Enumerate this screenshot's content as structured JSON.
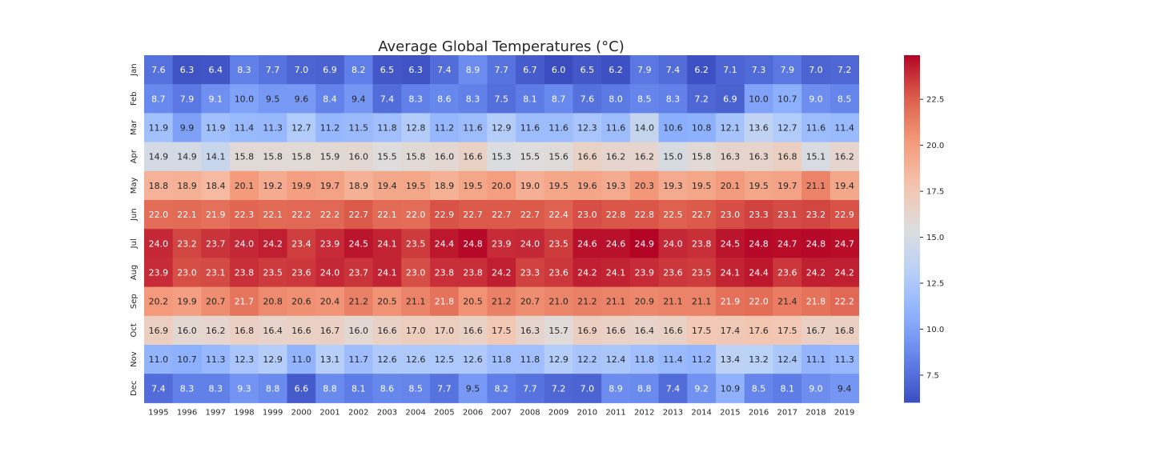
{
  "chart_data": {
    "type": "heatmap",
    "title": "Average Global Temperatures (°C)",
    "xlabel": "",
    "ylabel": "",
    "x": [
      "1995",
      "1996",
      "1997",
      "1998",
      "1999",
      "2000",
      "2001",
      "2002",
      "2003",
      "2004",
      "2005",
      "2006",
      "2007",
      "2008",
      "2009",
      "2010",
      "2011",
      "2012",
      "2013",
      "2014",
      "2015",
      "2016",
      "2017",
      "2018",
      "2019"
    ],
    "y": [
      "Jan",
      "Feb",
      "Mar",
      "Apr",
      "May",
      "Jun",
      "Jul",
      "Aug",
      "Sep",
      "Oct",
      "Nov",
      "Dec"
    ],
    "values": [
      [
        7.6,
        6.3,
        6.4,
        8.3,
        7.7,
        7.0,
        6.9,
        8.2,
        6.5,
        6.3,
        7.4,
        8.9,
        7.7,
        6.7,
        6.0,
        6.5,
        6.2,
        7.9,
        7.4,
        6.2,
        7.1,
        7.3,
        7.9,
        7.0,
        7.2
      ],
      [
        8.7,
        7.9,
        9.1,
        10.0,
        9.5,
        9.6,
        8.4,
        9.4,
        7.4,
        8.3,
        8.6,
        8.3,
        7.5,
        8.1,
        8.7,
        7.6,
        8.0,
        8.5,
        8.3,
        7.2,
        6.9,
        10.0,
        10.7,
        9.0,
        8.5
      ],
      [
        11.9,
        9.9,
        11.9,
        11.4,
        11.3,
        12.7,
        11.2,
        11.5,
        11.8,
        12.8,
        11.2,
        11.6,
        12.9,
        11.6,
        11.6,
        12.3,
        11.6,
        14.0,
        10.6,
        10.8,
        12.1,
        13.6,
        12.7,
        11.6,
        11.4
      ],
      [
        14.9,
        14.9,
        14.1,
        15.8,
        15.8,
        15.8,
        15.9,
        16.0,
        15.5,
        15.8,
        16.0,
        16.6,
        15.3,
        15.5,
        15.6,
        16.6,
        16.2,
        16.2,
        15.0,
        15.8,
        16.3,
        16.3,
        16.8,
        15.1,
        16.2
      ],
      [
        18.8,
        18.9,
        18.4,
        20.1,
        19.2,
        19.9,
        19.7,
        18.9,
        19.4,
        19.5,
        18.9,
        19.5,
        20.0,
        19.0,
        19.5,
        19.6,
        19.3,
        20.3,
        19.3,
        19.5,
        20.1,
        19.5,
        19.7,
        21.1,
        19.4
      ],
      [
        22.0,
        22.1,
        21.9,
        22.3,
        22.1,
        22.2,
        22.2,
        22.7,
        22.1,
        22.0,
        22.9,
        22.7,
        22.7,
        22.7,
        22.4,
        23.0,
        22.8,
        22.8,
        22.5,
        22.7,
        23.0,
        23.3,
        23.1,
        23.2,
        22.9
      ],
      [
        24.0,
        23.2,
        23.7,
        24.0,
        24.2,
        23.4,
        23.9,
        24.5,
        24.1,
        23.5,
        24.4,
        24.8,
        23.9,
        24.0,
        23.5,
        24.6,
        24.6,
        24.9,
        24.0,
        23.8,
        24.5,
        24.8,
        24.7,
        24.8,
        24.7
      ],
      [
        23.9,
        23.0,
        23.1,
        23.8,
        23.5,
        23.6,
        24.0,
        23.7,
        24.1,
        23.0,
        23.8,
        23.8,
        24.2,
        23.3,
        23.6,
        24.2,
        24.1,
        23.9,
        23.6,
        23.5,
        24.1,
        24.4,
        23.6,
        24.2,
        24.2
      ],
      [
        20.2,
        19.9,
        20.7,
        21.7,
        20.8,
        20.6,
        20.4,
        21.2,
        20.5,
        21.1,
        21.8,
        20.5,
        21.2,
        20.7,
        21.0,
        21.2,
        21.1,
        20.9,
        21.1,
        21.1,
        21.9,
        22.0,
        21.4,
        21.8,
        22.2
      ],
      [
        16.9,
        16.0,
        16.2,
        16.8,
        16.4,
        16.6,
        16.7,
        16.0,
        16.6,
        17.0,
        17.0,
        16.6,
        17.5,
        16.3,
        15.7,
        16.9,
        16.6,
        16.4,
        16.6,
        17.5,
        17.4,
        17.6,
        17.5,
        16.7,
        16.8
      ],
      [
        11.0,
        10.7,
        11.3,
        12.3,
        12.9,
        11.0,
        13.1,
        11.7,
        12.6,
        12.6,
        12.5,
        12.6,
        11.8,
        11.8,
        12.9,
        12.2,
        12.4,
        11.8,
        11.4,
        11.2,
        13.4,
        13.2,
        12.4,
        11.1,
        11.3
      ],
      [
        7.4,
        8.3,
        8.3,
        9.3,
        8.8,
        6.6,
        8.8,
        8.1,
        8.6,
        8.5,
        7.7,
        9.5,
        8.2,
        7.7,
        7.2,
        7.0,
        8.9,
        8.8,
        7.4,
        9.2,
        10.9,
        8.5,
        8.1,
        9.0,
        9.4
      ]
    ],
    "value_format": "1 decimal",
    "colormap": "coolwarm",
    "color_range": [
      6.0,
      24.9
    ],
    "colorbar_ticks": [
      "7.5",
      "10.0",
      "12.5",
      "15.0",
      "17.5",
      "20.0",
      "22.5"
    ],
    "grid": false,
    "legend": "colorbar-right"
  }
}
